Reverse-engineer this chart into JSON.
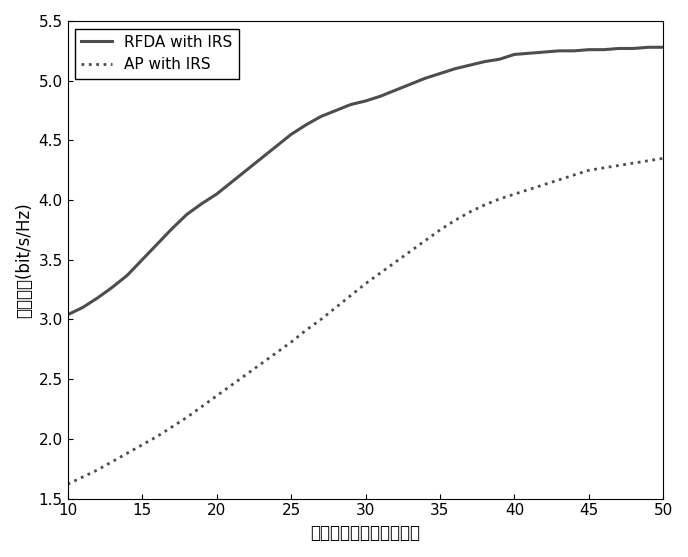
{
  "x": [
    10,
    11,
    12,
    13,
    14,
    15,
    16,
    17,
    18,
    19,
    20,
    21,
    22,
    23,
    24,
    25,
    26,
    27,
    28,
    29,
    30,
    31,
    32,
    33,
    34,
    35,
    36,
    37,
    38,
    39,
    40,
    41,
    42,
    43,
    44,
    45,
    46,
    47,
    48,
    49,
    50
  ],
  "rfda_y": [
    3.04,
    3.1,
    3.18,
    3.27,
    3.37,
    3.5,
    3.63,
    3.76,
    3.88,
    3.97,
    4.05,
    4.15,
    4.25,
    4.35,
    4.45,
    4.55,
    4.63,
    4.7,
    4.75,
    4.8,
    4.83,
    4.87,
    4.92,
    4.97,
    5.02,
    5.06,
    5.1,
    5.13,
    5.16,
    5.18,
    5.22,
    5.23,
    5.24,
    5.25,
    5.25,
    5.26,
    5.26,
    5.27,
    5.27,
    5.28,
    5.28
  ],
  "ap_y": [
    1.62,
    1.68,
    1.74,
    1.81,
    1.88,
    1.95,
    2.02,
    2.1,
    2.18,
    2.27,
    2.36,
    2.45,
    2.54,
    2.63,
    2.72,
    2.81,
    2.91,
    3.0,
    3.1,
    3.2,
    3.3,
    3.39,
    3.48,
    3.57,
    3.66,
    3.75,
    3.83,
    3.9,
    3.96,
    4.01,
    4.05,
    4.09,
    4.13,
    4.17,
    4.21,
    4.25,
    4.27,
    4.29,
    4.31,
    4.33,
    4.35
  ],
  "xlim": [
    10,
    50
  ],
  "ylim": [
    1.5,
    5.5
  ],
  "xticks": [
    10,
    15,
    20,
    25,
    30,
    35,
    40,
    45,
    50
  ],
  "yticks": [
    1.5,
    2.0,
    2.5,
    3.0,
    3.5,
    4.0,
    4.5,
    5.0,
    5.5
  ],
  "xlabel": "智能反射面反射单元数目",
  "ylabel": "保密容量(bit/s/Hz)",
  "legend_rfda": "RFDA with IRS",
  "legend_ap": "AP with IRS",
  "line_color": "#4d4d4d",
  "background_color": "#ffffff",
  "figsize": [
    6.88,
    5.57
  ],
  "dpi": 100
}
